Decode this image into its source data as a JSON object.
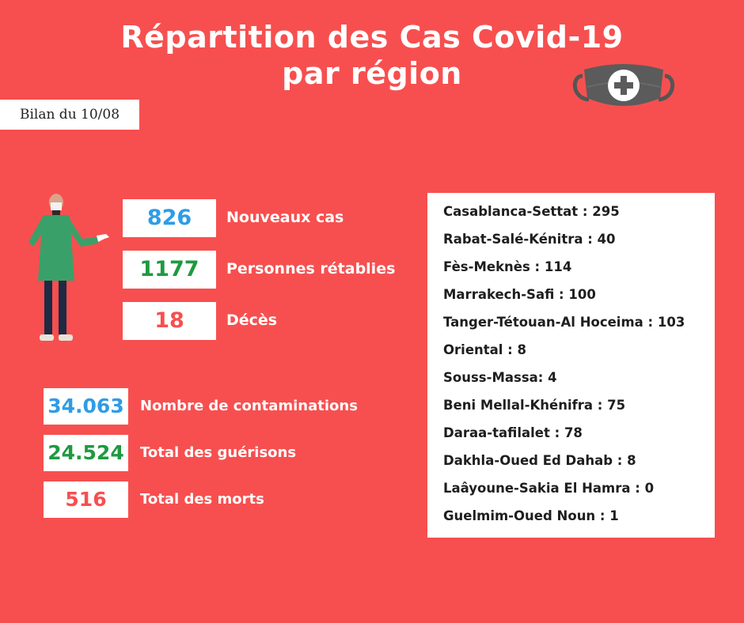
{
  "title": {
    "line1": "Répartition des Cas Covid-19",
    "line2": "par région"
  },
  "bilan": "Bilan du 10/08",
  "daily": [
    {
      "value": "826",
      "label": "Nouveaux cas",
      "color": "#2e9ce6"
    },
    {
      "value": "1177",
      "label": "Personnes rétablies",
      "color": "#1e9a40"
    },
    {
      "value": "18",
      "label": "Décès",
      "color": "#f74f4f"
    }
  ],
  "totals": [
    {
      "value": "34.063",
      "label": "Nombre de contaminations",
      "color": "#2e9ce6"
    },
    {
      "value": "24.524",
      "label": "Total des guérisons",
      "color": "#1e9a40"
    },
    {
      "value": "516",
      "label": "Total des morts",
      "color": "#f74f4f"
    }
  ],
  "regions": [
    "Casablanca-Settat : 295",
    "Rabat-Salé-Kénitra : 40",
    "Fès-Meknès : 114",
    "Marrakech-Safi : 100",
    "Tanger-Tétouan-Al Hoceima : 103",
    "Oriental : 8",
    "Souss-Massa: 4",
    "Beni Mellal-Khénifra : 75",
    "Daraa-tafilalet : 78",
    "Dakhla-Oued Ed Dahab : 8",
    "Laâyoune-Sakia El Hamra : 0",
    "Guelmim-Oued Noun : 1"
  ],
  "colors": {
    "background": "#f74f4f",
    "blue": "#2e9ce6",
    "green": "#1e9a40",
    "red": "#f74f4f"
  },
  "icons": {
    "mask": "face-mask-icon",
    "person": "doctor-illustration"
  }
}
